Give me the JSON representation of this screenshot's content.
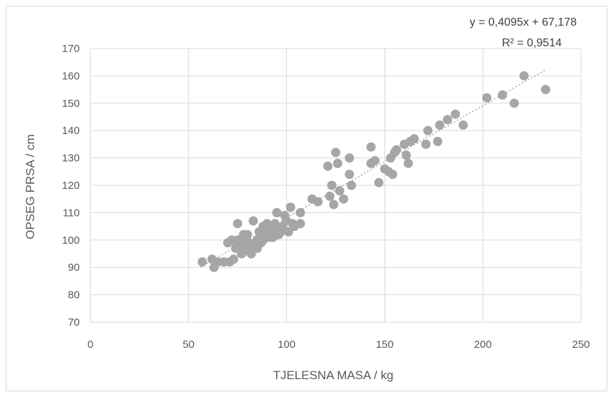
{
  "chart_data": {
    "type": "scatter",
    "xlabel": "TJELESNA MASA / kg",
    "ylabel": "OPSEG PRSA / cm",
    "xlim": [
      0,
      250
    ],
    "ylim": [
      70,
      170
    ],
    "x_ticks": [
      "0",
      "50",
      "100",
      "150",
      "200",
      "250"
    ],
    "y_ticks": [
      "70",
      "80",
      "90",
      "100",
      "110",
      "120",
      "130",
      "140",
      "150",
      "160",
      "170"
    ],
    "grid": true,
    "trendline": {
      "type": "linear",
      "slope": 0.4095,
      "intercept": 67.178,
      "x_range": [
        56,
        232
      ],
      "equation": "y = 0,4095x + 67,178",
      "r_squared": "R² = 0,9514"
    },
    "series": [
      {
        "color": "#a6a6a6",
        "points": [
          [
            57,
            92
          ],
          [
            62,
            93
          ],
          [
            63,
            90
          ],
          [
            65,
            92
          ],
          [
            68,
            92
          ],
          [
            70,
            99
          ],
          [
            71,
            92
          ],
          [
            72,
            100
          ],
          [
            73,
            93
          ],
          [
            74,
            97
          ],
          [
            75,
            106
          ],
          [
            75,
            100
          ],
          [
            76,
            98
          ],
          [
            77,
            95
          ],
          [
            78,
            100
          ],
          [
            78,
            102
          ],
          [
            79,
            97
          ],
          [
            80,
            96
          ],
          [
            80,
            102
          ],
          [
            81,
            99
          ],
          [
            82,
            98
          ],
          [
            82,
            95
          ],
          [
            83,
            107
          ],
          [
            84,
            99
          ],
          [
            85,
            100
          ],
          [
            85,
            97
          ],
          [
            86,
            103
          ],
          [
            87,
            101
          ],
          [
            87,
            99
          ],
          [
            88,
            105
          ],
          [
            88,
            100
          ],
          [
            89,
            103
          ],
          [
            90,
            102
          ],
          [
            90,
            106
          ],
          [
            91,
            104
          ],
          [
            91,
            101
          ],
          [
            92,
            105
          ],
          [
            93,
            103
          ],
          [
            93,
            101
          ],
          [
            94,
            106
          ],
          [
            95,
            104
          ],
          [
            95,
            110
          ],
          [
            96,
            102
          ],
          [
            97,
            103
          ],
          [
            98,
            105
          ],
          [
            99,
            109
          ],
          [
            100,
            107
          ],
          [
            101,
            103
          ],
          [
            102,
            112
          ],
          [
            103,
            106
          ],
          [
            104,
            105
          ],
          [
            107,
            106
          ],
          [
            107,
            110
          ],
          [
            113,
            115
          ],
          [
            116,
            114
          ],
          [
            121,
            127
          ],
          [
            122,
            116
          ],
          [
            123,
            120
          ],
          [
            124,
            113
          ],
          [
            125,
            132
          ],
          [
            126,
            128
          ],
          [
            127,
            118
          ],
          [
            129,
            115
          ],
          [
            132,
            124
          ],
          [
            132,
            130
          ],
          [
            133,
            120
          ],
          [
            143,
            134
          ],
          [
            143,
            128
          ],
          [
            145,
            129
          ],
          [
            147,
            121
          ],
          [
            150,
            126
          ],
          [
            152,
            125
          ],
          [
            153,
            130
          ],
          [
            154,
            124
          ],
          [
            155,
            132
          ],
          [
            156,
            133
          ],
          [
            160,
            135
          ],
          [
            161,
            131
          ],
          [
            162,
            128
          ],
          [
            163,
            136
          ],
          [
            165,
            137
          ],
          [
            171,
            135
          ],
          [
            172,
            140
          ],
          [
            177,
            136
          ],
          [
            178,
            142
          ],
          [
            182,
            144
          ],
          [
            186,
            146
          ],
          [
            190,
            142
          ],
          [
            202,
            152
          ],
          [
            210,
            153
          ],
          [
            216,
            150
          ],
          [
            221,
            160
          ],
          [
            232,
            155
          ]
        ]
      }
    ]
  }
}
